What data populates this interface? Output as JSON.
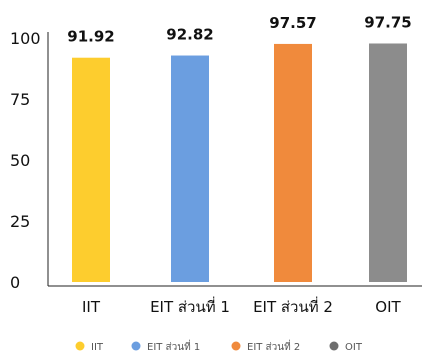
{
  "chart_data": {
    "type": "bar",
    "title": "",
    "xlabel": "",
    "ylabel": "",
    "categories": [
      "IIT",
      "EIT ส่วนที่ 1",
      "EIT ส่วนที่ 2",
      "OIT"
    ],
    "values": [
      91.92,
      92.82,
      97.57,
      97.75
    ],
    "data_labels": [
      "91.92",
      "92.82",
      "97.57",
      "97.75"
    ],
    "colors": [
      "#FDCD2E",
      "#6B9EE0",
      "#F08A3C",
      "#8C8C8C"
    ],
    "ylim": [
      0,
      100
    ],
    "yticks": [
      0,
      25,
      50,
      75,
      100
    ],
    "grid": false,
    "legend": {
      "placement": "bottom",
      "items": [
        {
          "label": "IIT",
          "color": "#FDCD2E"
        },
        {
          "label": "EIT ส่วนที่ 1",
          "color": "#6B9EE0"
        },
        {
          "label": "EIT ส่วนที่ 2",
          "color": "#F08A3C"
        },
        {
          "label": "OIT",
          "color": "#6E6E6E"
        }
      ]
    }
  }
}
